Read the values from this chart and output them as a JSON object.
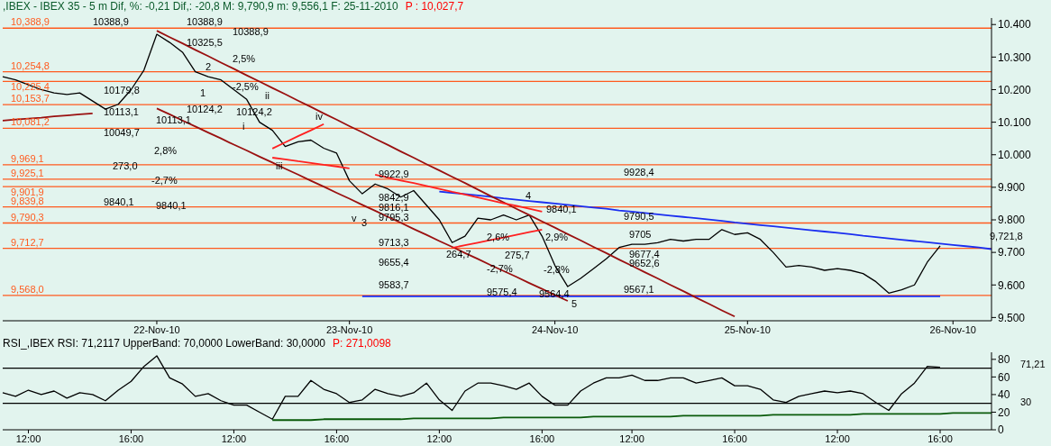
{
  "chart_data": [
    {
      "type": "line",
      "title": ",IBEX - IBEX 35 -  5 m Dif, %: -0,21 Dif,: -20,8 M: 9,790,9 m: 9,556,1 F: 25-11-2010",
      "subtitle": "P : 10,027,7",
      "categories": [
        null,
        null,
        null,
        null,
        null,
        null,
        null,
        null,
        null,
        null,
        null,
        null,
        "22-Nov-10",
        null,
        null,
        null,
        null,
        null,
        null,
        null,
        null,
        null,
        null,
        null,
        null,
        null,
        null,
        "23-Nov-10",
        null,
        null,
        null,
        null,
        null,
        null,
        null,
        null,
        null,
        null,
        null,
        null,
        null,
        null,
        null,
        "24-Nov-10",
        null,
        null,
        null,
        null,
        null,
        null,
        null,
        null,
        null,
        null,
        null,
        null,
        null,
        null,
        "25-Nov-10",
        null,
        null,
        null,
        null,
        null,
        null,
        null,
        null,
        null,
        null,
        null,
        null,
        null,
        null,
        null,
        "26-Nov-10",
        null,
        null,
        null
      ],
      "ylim": [
        9490,
        10420
      ],
      "yticks": [
        {
          "value": 9500,
          "label": "9.500"
        },
        {
          "value": 9600,
          "label": "9.600"
        },
        {
          "value": 9700,
          "label": "9.700"
        },
        {
          "value": 9800,
          "label": "9.800"
        },
        {
          "value": 9900,
          "label": "9.900"
        },
        {
          "value": 10000,
          "label": "10.000"
        },
        {
          "value": 10100,
          "label": "10.100"
        },
        {
          "value": 10200,
          "label": "10.200"
        },
        {
          "value": 10300,
          "label": "10.300"
        },
        {
          "value": 10400,
          "label": "10.400"
        }
      ],
      "marker": "none",
      "line_style": "solid",
      "series": [
        {
          "color": "#000000",
          "values": [
            10240,
            10230,
            10215,
            10200,
            10190,
            10185,
            10190,
            10165,
            10140,
            10155,
            10200,
            10260,
            10370,
            10345,
            10315,
            10255,
            10240,
            10230,
            10200,
            10170,
            10100,
            10075,
            10025,
            10040,
            10045,
            10020,
            10005,
            9920,
            9880,
            9910,
            9895,
            9870,
            9890,
            9845,
            9800,
            9730,
            9750,
            9805,
            9800,
            9815,
            9800,
            9815,
            9750,
            9660,
            9595,
            9620,
            9650,
            9680,
            9715,
            9725,
            9725,
            9730,
            9740,
            9735,
            9740,
            9740,
            9770,
            9755,
            9760,
            9740,
            9700,
            9655,
            9660,
            9655,
            9645,
            9650,
            9645,
            9635,
            9610,
            9575,
            9585,
            9600,
            9670,
            9720,
            null,
            null,
            null,
            null
          ]
        },
        {
          "color": "#1a2ef0",
          "values": [
            null,
            null,
            null,
            null,
            null,
            null,
            null,
            null,
            null,
            null,
            null,
            null,
            null,
            null,
            null,
            null,
            null,
            null,
            null,
            null,
            null,
            null,
            null,
            null,
            null,
            null,
            null,
            null,
            null,
            null,
            null,
            null,
            null,
            null,
            9887,
            9883,
            9879,
            9875,
            9871,
            9866,
            9862,
            9858,
            9854,
            9850,
            9846,
            9842,
            9838,
            9834,
            9829,
            9825,
            9821,
            9817,
            9813,
            9809,
            9805,
            9801,
            9797,
            9792,
            9788,
            9784,
            9780,
            9776,
            9772,
            9768,
            9764,
            9760,
            9756,
            9751,
            9747,
            9743,
            9739,
            9735,
            9731,
            9727,
            9723,
            9719,
            9715,
            9710
          ]
        },
        {
          "color": "#1a2ef0",
          "values": [
            null,
            null,
            null,
            null,
            null,
            null,
            null,
            null,
            null,
            null,
            null,
            null,
            null,
            null,
            null,
            null,
            null,
            null,
            null,
            null,
            null,
            null,
            null,
            null,
            null,
            null,
            null,
            null,
            9565,
            9565,
            9565,
            9565,
            9565,
            9565,
            9565,
            9565,
            9565,
            9565,
            9565,
            9565,
            9565,
            9565,
            9565,
            9565,
            9565,
            9565,
            9565,
            9565,
            9565,
            9565,
            9565,
            9565,
            9565,
            9565,
            9565,
            9565,
            9565,
            9565,
            9565,
            9565,
            9565,
            9565,
            9565,
            9565,
            9565,
            9565,
            9565,
            9565,
            9565,
            9565,
            9565,
            9565,
            9565,
            9565,
            null,
            null,
            null,
            null
          ]
        },
        {
          "color": "#9a1010",
          "values": [
            null,
            null,
            null,
            null,
            null,
            null,
            null,
            null,
            null,
            null,
            null,
            null,
            10381,
            10361,
            10342,
            10322,
            10303,
            10283,
            10264,
            10244,
            10225,
            10205,
            10186,
            10166,
            10147,
            10127,
            10108,
            10088,
            10069,
            10049,
            10030,
            10010,
            9991,
            9971,
            9952,
            9932,
            9913,
            9893,
            9873,
            9854,
            9834,
            9815,
            9795,
            9776,
            9756,
            9737,
            9717,
            9698,
            9678,
            9659,
            9639,
            9620,
            9600,
            9581,
            9561,
            9542,
            9522,
            9503,
            null,
            null,
            null,
            null,
            null,
            null,
            null,
            null,
            null,
            null,
            null,
            null,
            null,
            null,
            null,
            null,
            null,
            null,
            null,
            null
          ]
        },
        {
          "color": "#9a1010",
          "values": [
            null,
            null,
            null,
            null,
            null,
            null,
            null,
            null,
            null,
            null,
            null,
            null,
            10142,
            10124,
            10105,
            10087,
            10068,
            10050,
            10031,
            10013,
            9994,
            9976,
            9957,
            9939,
            9920,
            9902,
            9883,
            9865,
            9846,
            9828,
            9809,
            9791,
            9772,
            9754,
            9735,
            9717,
            9698,
            9680,
            9661,
            9643,
            9625,
            9606,
            9588,
            9569,
            9551,
            null,
            null,
            null,
            null,
            null,
            null,
            null,
            null,
            null,
            null,
            null,
            null,
            null,
            null,
            null,
            null,
            null,
            null,
            null,
            null,
            null,
            null,
            null,
            null,
            null,
            null,
            null,
            null,
            null,
            null,
            null,
            null,
            null
          ]
        },
        {
          "color": "#9a1010",
          "values": [
            10105,
            10108,
            10111,
            10114,
            10118,
            10121,
            10124,
            10127,
            null,
            null,
            null,
            null,
            null,
            null,
            null,
            null,
            null,
            null,
            null,
            null,
            null,
            null,
            null,
            null,
            null,
            null,
            null,
            null,
            null,
            null,
            null,
            null,
            null,
            null,
            null,
            null,
            null,
            null,
            null,
            null,
            null,
            null,
            null,
            null,
            null,
            null,
            null,
            null,
            null,
            null,
            null,
            null,
            null,
            null,
            null,
            null,
            null,
            null,
            null,
            null,
            null,
            null,
            null,
            null,
            null,
            null,
            null,
            null,
            null,
            null,
            null,
            null,
            null,
            null,
            null,
            null,
            null,
            null
          ]
        },
        {
          "color": "#ff2020",
          "values": [
            null,
            null,
            null,
            null,
            null,
            null,
            null,
            null,
            null,
            null,
            null,
            null,
            null,
            null,
            null,
            null,
            null,
            null,
            null,
            null,
            null,
            10019,
            10038,
            10057,
            10075,
            10094,
            null,
            null,
            null,
            null,
            null,
            null,
            null,
            null,
            null,
            null,
            null,
            null,
            null,
            null,
            null,
            null,
            null,
            null,
            null,
            null,
            null,
            null,
            null,
            null,
            null,
            null,
            null,
            null,
            null,
            null,
            null,
            null,
            null,
            null,
            null,
            null,
            null,
            null,
            null,
            null,
            null,
            null,
            null,
            null,
            null,
            null,
            null,
            null,
            null,
            null,
            null,
            null
          ]
        },
        {
          "color": "#ff2020",
          "values": [
            null,
            null,
            null,
            null,
            null,
            null,
            null,
            null,
            null,
            null,
            null,
            null,
            null,
            null,
            null,
            null,
            null,
            null,
            null,
            null,
            null,
            9991,
            9986,
            9980,
            9975,
            9969,
            9964,
            9958,
            null,
            null,
            null,
            null,
            null,
            null,
            null,
            null,
            null,
            null,
            null,
            null,
            null,
            null,
            null,
            null,
            null,
            null,
            null,
            null,
            null,
            null,
            null,
            null,
            null,
            null,
            null,
            null,
            null,
            null,
            null,
            null,
            null,
            null,
            null,
            null,
            null,
            null,
            null,
            null,
            null,
            null,
            null,
            null,
            null,
            null,
            null,
            null,
            null,
            null
          ]
        },
        {
          "color": "#ff2020",
          "values": [
            null,
            null,
            null,
            null,
            null,
            null,
            null,
            null,
            null,
            null,
            null,
            null,
            null,
            null,
            null,
            null,
            null,
            null,
            null,
            null,
            null,
            null,
            null,
            null,
            null,
            null,
            null,
            null,
            null,
            9939,
            9930,
            9921,
            9913,
            9904,
            9895,
            9886,
            9878,
            9869,
            9860,
            9851,
            9843,
            9834,
            9825,
            null,
            null,
            null,
            null,
            null,
            null,
            null,
            null,
            null,
            null,
            null,
            null,
            null,
            null,
            null,
            null,
            null,
            null,
            null,
            null,
            null,
            null,
            null,
            null,
            null,
            null,
            null,
            null,
            null,
            null,
            null,
            null,
            null,
            null,
            null
          ]
        },
        {
          "color": "#ff2020",
          "values": [
            null,
            null,
            null,
            null,
            null,
            null,
            null,
            null,
            null,
            null,
            null,
            null,
            null,
            null,
            null,
            null,
            null,
            null,
            null,
            null,
            null,
            null,
            null,
            null,
            null,
            null,
            null,
            null,
            null,
            null,
            null,
            null,
            null,
            null,
            null,
            9714,
            9722,
            9730,
            9738,
            9746,
            9754,
            9762,
            9770,
            null,
            null,
            null,
            null,
            null,
            null,
            null,
            null,
            null,
            null,
            null,
            null,
            null,
            null,
            null,
            null,
            null,
            null,
            null,
            null,
            null,
            null,
            null,
            null,
            null,
            null,
            null,
            null,
            null,
            null,
            null,
            null,
            null,
            null,
            null
          ]
        }
      ],
      "ref_lines": [
        {
          "axis": "y",
          "value": 10388.9,
          "label": "10,388,9",
          "color": "#ff5a1e"
        },
        {
          "axis": "y",
          "value": 10254.8,
          "label": "10,254,8",
          "color": "#ff5a1e"
        },
        {
          "axis": "y",
          "value": 10225.4,
          "label": "10,225,4",
          "color": "#ff5a1e"
        },
        {
          "axis": "y",
          "value": 10153.7,
          "label": "10,153,7",
          "color": "#ff5a1e"
        },
        {
          "axis": "y",
          "value": 10081.2,
          "label": "10,081,2",
          "color": "#ff5a1e"
        },
        {
          "axis": "y",
          "value": 9969.1,
          "label": "9,969,1",
          "color": "#ff5a1e"
        },
        {
          "axis": "y",
          "value": 9925.1,
          "label": "9,925,1",
          "color": "#ff5a1e"
        },
        {
          "axis": "y",
          "value": 9901.9,
          "label": "9,901,9",
          "color": "#ff5a1e"
        },
        {
          "axis": "y",
          "value": 9839.8,
          "label": "9,839,8",
          "color": "#ff5a1e"
        },
        {
          "axis": "y",
          "value": 9790.3,
          "label": "9,790,3",
          "color": "#ff5a1e"
        },
        {
          "axis": "y",
          "value": 9712.7,
          "label": "9,712,7",
          "color": "#ff5a1e"
        },
        {
          "axis": "y",
          "value": 9568.0,
          "label": "9,568,0",
          "color": "#ff5a1e"
        }
      ],
      "annotations": [
        "10388,9",
        "10388,9",
        "10388,9",
        "10325,5",
        "2,5%",
        "-2,5%",
        "10179,8",
        "10113,1",
        "10124,2",
        "10124,2",
        "10113,1",
        "10049,7",
        "2,8%",
        "273,0",
        "-2,7%",
        "9840,1",
        "9840,1",
        "1",
        "2",
        "i",
        "ii",
        "iii",
        "iv",
        "v",
        "3",
        "4",
        "5",
        "9922,9",
        "9842,9",
        "9816,1",
        "9795,3",
        "9713,3",
        "264,7",
        "2,6%",
        "-2,7%",
        "9575,4",
        "275,7",
        "9840,1",
        "2,9%",
        "-2,8%",
        "9564,4",
        "9655,4",
        "9583,7",
        "9928,4",
        "9790,5",
        "9705",
        "9677,4",
        "9652,6",
        "9567,1",
        "9,721,8"
      ]
    },
    {
      "type": "line",
      "title": "RSI_,IBEX RSI: 71,2117 UpperBand: 70,0000 LowerBand: 30,0000",
      "subtitle": "P: 271,0098",
      "categories": [
        null,
        null,
        "12:00",
        null,
        null,
        null,
        null,
        null,
        null,
        null,
        "16:00",
        null,
        null,
        null,
        null,
        null,
        null,
        null,
        "12:00",
        null,
        null,
        null,
        null,
        null,
        null,
        null,
        "16:00",
        null,
        null,
        null,
        null,
        null,
        null,
        null,
        "12:00",
        null,
        null,
        null,
        null,
        null,
        null,
        null,
        "16:00",
        null,
        null,
        null,
        null,
        null,
        null,
        "12:00",
        null,
        null,
        null,
        null,
        null,
        null,
        null,
        "16:00",
        null,
        null,
        null,
        null,
        null,
        null,
        null,
        "12:00",
        null,
        null,
        null,
        null,
        null,
        null,
        null,
        "16:00",
        null,
        null,
        null,
        null
      ],
      "ylim": [
        0,
        88
      ],
      "yticks": [
        0,
        20,
        40,
        60,
        80
      ],
      "marker": "none",
      "line_style": "solid",
      "series": [
        {
          "color": "#000000",
          "values": [
            42,
            38,
            45,
            40,
            44,
            36,
            42,
            40,
            33,
            45,
            55,
            72,
            84,
            59,
            52,
            38,
            41,
            33,
            28,
            28,
            20,
            12,
            38,
            38,
            56,
            46,
            41,
            31,
            34,
            46,
            41,
            38,
            42,
            53,
            34,
            22,
            44,
            53,
            53,
            50,
            46,
            53,
            38,
            28,
            28,
            44,
            53,
            59,
            59,
            62,
            56,
            56,
            59,
            59,
            53,
            56,
            59,
            50,
            50,
            46,
            34,
            31,
            38,
            41,
            44,
            42,
            44,
            41,
            31,
            22,
            41,
            53,
            72,
            71,
            null,
            null,
            null,
            null
          ]
        },
        {
          "color": "#0a5a0a",
          "values": [
            null,
            null,
            null,
            null,
            null,
            null,
            null,
            null,
            null,
            null,
            null,
            null,
            null,
            null,
            null,
            null,
            null,
            null,
            null,
            null,
            null,
            11,
            11,
            11,
            11,
            12,
            12,
            12,
            12,
            12,
            12,
            12,
            13,
            13,
            13,
            13,
            13,
            13,
            13,
            14,
            14,
            14,
            14,
            14,
            14,
            14,
            15,
            15,
            15,
            15,
            15,
            15,
            15,
            16,
            16,
            16,
            16,
            16,
            16,
            16,
            17,
            17,
            17,
            17,
            17,
            17,
            17,
            18,
            18,
            18,
            18,
            18,
            18,
            18,
            19,
            19,
            19,
            19
          ]
        }
      ],
      "ref_lines": [
        {
          "axis": "y",
          "value": 70,
          "label": null,
          "color": "#000000"
        },
        {
          "axis": "y",
          "value": 30,
          "label": null,
          "color": "#000000"
        }
      ],
      "annotations": [
        "71,21",
        "30"
      ]
    }
  ]
}
